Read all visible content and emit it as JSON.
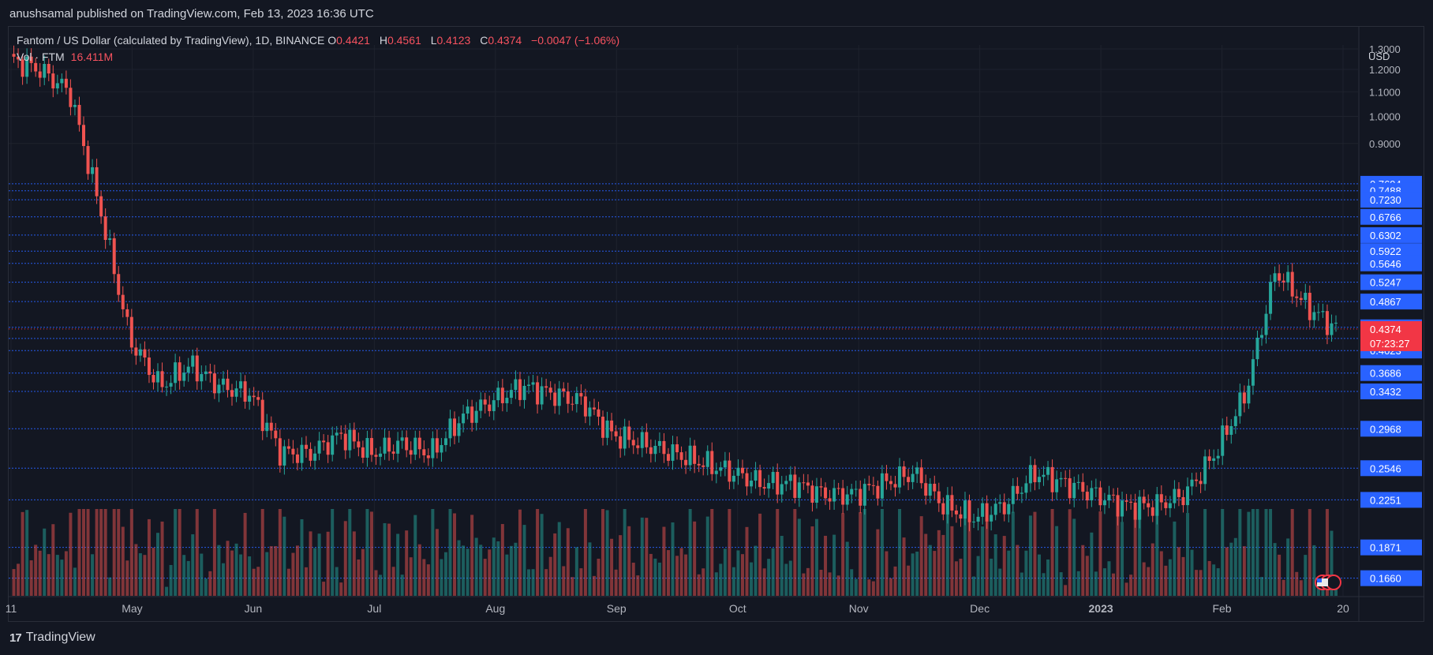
{
  "header": {
    "published": "anushsamal published on TradingView.com, Feb 13, 2023 16:36 UTC"
  },
  "legend": {
    "symbol": "Fantom / US Dollar (calculated by TradingView), 1D, BINANCE",
    "o_label": "O",
    "o_value": "0.4421",
    "h_label": "H",
    "h_value": "0.4561",
    "l_label": "L",
    "l_value": "0.4123",
    "c_label": "C",
    "c_value": "0.4374",
    "change": "−0.0047 (−1.06%)"
  },
  "volume": {
    "label": "Vol · FTM",
    "value": "16.411M"
  },
  "currency": "USD",
  "brand": {
    "name": "TradingView"
  },
  "colors": {
    "background": "#131722",
    "grid": "#1e222d",
    "up": "#26a69a",
    "down": "#ef5350",
    "level_line": "#2962ff",
    "level_label": "#2962ff",
    "price_label": "#f23645"
  },
  "chart_data": {
    "type": "candlestick",
    "title": "Fantom / US Dollar (calculated by TradingView), 1D, BINANCE",
    "y_scale": "log",
    "y_ticks": [
      "1.3000",
      "1.2000",
      "1.1000",
      "1.0000",
      "0.9000"
    ],
    "y_range": [
      0.155,
      1.32
    ],
    "x_ticks": [
      "11",
      "May",
      "Jun",
      "Jul",
      "Aug",
      "Sep",
      "Oct",
      "Nov",
      "Dec",
      "2023",
      "Feb",
      "20"
    ],
    "levels": [
      "0.7694",
      "0.7488",
      "0.7230",
      "0.6766",
      "0.6302",
      "0.5922",
      "0.5646",
      "0.5247",
      "0.4867",
      "0.4403",
      "0.4216",
      "0.4023",
      "0.3686",
      "0.3432",
      "0.2968",
      "0.2546",
      "0.2251",
      "0.1871",
      "0.1660"
    ],
    "last_price": "0.4374",
    "countdown": "07:23:27",
    "series": [
      {
        "name": "FTM/USD close (approx.)",
        "x": [
          "Apr 11",
          "Apr 18",
          "Apr 25",
          "May 2",
          "May 9",
          "May 16",
          "May 23",
          "May 30",
          "Jun 6",
          "Jun 13",
          "Jun 20",
          "Jun 27",
          "Jul 4",
          "Jul 11",
          "Jul 18",
          "Jul 25",
          "Aug 1",
          "Aug 8",
          "Aug 15",
          "Aug 22",
          "Aug 29",
          "Sep 5",
          "Sep 12",
          "Sep 19",
          "Sep 26",
          "Oct 3",
          "Oct 10",
          "Oct 17",
          "Oct 24",
          "Oct 31",
          "Nov 7",
          "Nov 14",
          "Nov 21",
          "Nov 28",
          "Dec 5",
          "Dec 12",
          "Dec 19",
          "Dec 26",
          "Jan 2",
          "Jan 9",
          "Jan 16",
          "Jan 23",
          "Jan 30",
          "Feb 6",
          "Feb 13"
        ],
        "values": [
          1.25,
          1.2,
          1.1,
          0.7,
          0.42,
          0.35,
          0.38,
          0.35,
          0.34,
          0.27,
          0.27,
          0.29,
          0.27,
          0.28,
          0.27,
          0.31,
          0.33,
          0.35,
          0.34,
          0.33,
          0.29,
          0.28,
          0.27,
          0.26,
          0.25,
          0.24,
          0.24,
          0.23,
          0.23,
          0.24,
          0.25,
          0.22,
          0.21,
          0.22,
          0.25,
          0.24,
          0.23,
          0.22,
          0.22,
          0.23,
          0.27,
          0.34,
          0.55,
          0.48,
          0.4374
        ]
      }
    ],
    "volume_series": {
      "name": "Vol · FTM",
      "last_value": "16.411M"
    }
  }
}
